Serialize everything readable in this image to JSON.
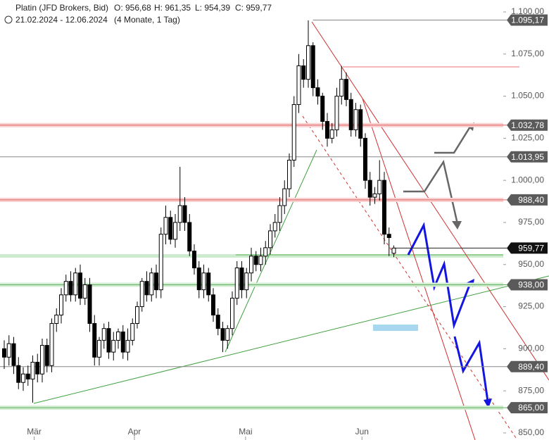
{
  "chart_data": {
    "type": "candlestick",
    "title": "Platin (JFD Brokers, Bid)",
    "ohlc_labels": [
      "O: 956,68",
      "H: 961,35",
      "L: 954,39",
      "C: 959,77"
    ],
    "date_range": "21.02.2024 - 12.06.2024",
    "period": "(4 Monate, 1 Tag)",
    "open": [
      900,
      895,
      903,
      890,
      880,
      885,
      882,
      892,
      885,
      902,
      890,
      915,
      920,
      932,
      940,
      932,
      945,
      930,
      938,
      915,
      895,
      905,
      912,
      898,
      905,
      910,
      898,
      905,
      915,
      925,
      940,
      932,
      945,
      935,
      968,
      978,
      965,
      975,
      985,
      975,
      958,
      948,
      935,
      945,
      932,
      920,
      912,
      905,
      912,
      930,
      948,
      935,
      945,
      955,
      950,
      955,
      960,
      970,
      975,
      985,
      995,
      1012,
      1045,
      1068,
      1060,
      1080,
      1055,
      1050,
      1035,
      1025,
      1030,
      1050,
      1060,
      1048,
      1030,
      1042,
      1025,
      1000,
      990,
      992,
      1000,
      968,
      956.68
    ],
    "high": [
      905,
      908,
      907,
      895,
      889,
      890,
      896,
      897,
      906,
      906,
      918,
      924,
      936,
      944,
      946,
      948,
      950,
      942,
      942,
      920,
      907,
      915,
      916,
      910,
      912,
      914,
      912,
      918,
      928,
      942,
      946,
      948,
      950,
      972,
      985,
      982,
      980,
      1008,
      990,
      980,
      962,
      952,
      950,
      948,
      936,
      924,
      916,
      914,
      934,
      952,
      952,
      948,
      960,
      958,
      960,
      964,
      974,
      980,
      990,
      1000,
      1016,
      1050,
      1075,
      1072,
      1095,
      1082,
      1060,
      1052,
      1040,
      1034,
      1055,
      1068,
      1064,
      1052,
      1046,
      1045,
      1028,
      1005,
      996,
      1012,
      1005,
      972,
      961.35
    ],
    "low": [
      888,
      890,
      885,
      876,
      875,
      878,
      868,
      880,
      880,
      886,
      886,
      910,
      915,
      928,
      928,
      928,
      926,
      926,
      910,
      890,
      890,
      900,
      894,
      893,
      900,
      894,
      893,
      902,
      912,
      922,
      928,
      928,
      930,
      930,
      962,
      962,
      960,
      970,
      970,
      955,
      944,
      930,
      930,
      928,
      916,
      908,
      898,
      900,
      908,
      926,
      930,
      930,
      940,
      946,
      946,
      950,
      956,
      966,
      970,
      980,
      990,
      1008,
      1040,
      1055,
      1055,
      1050,
      1045,
      1030,
      1020,
      1022,
      1026,
      1045,
      1044,
      1026,
      1026,
      1020,
      995,
      985,
      986,
      988,
      962,
      955,
      954.39
    ],
    "close": [
      895,
      903,
      890,
      880,
      885,
      882,
      892,
      885,
      902,
      890,
      915,
      920,
      932,
      940,
      932,
      945,
      930,
      938,
      915,
      895,
      905,
      912,
      898,
      905,
      910,
      898,
      905,
      915,
      925,
      940,
      932,
      945,
      935,
      968,
      978,
      965,
      975,
      985,
      975,
      958,
      948,
      935,
      945,
      932,
      920,
      912,
      905,
      912,
      930,
      948,
      935,
      945,
      955,
      950,
      955,
      960,
      970,
      975,
      985,
      995,
      1012,
      1045,
      1068,
      1060,
      1080,
      1055,
      1050,
      1035,
      1025,
      1030,
      1050,
      1060,
      1048,
      1030,
      1042,
      1025,
      1000,
      990,
      992,
      1000,
      968,
      966,
      959.77
    ],
    "xlim": [
      -0.89,
      114.67
    ],
    "xticks": [
      {
        "value": 6.3,
        "label": "Mär"
      },
      {
        "value": 27.4,
        "label": "Apr"
      },
      {
        "value": 50.8,
        "label": "Mai"
      },
      {
        "value": 75.3,
        "label": "Jun"
      }
    ],
    "ylim": [
      845.8,
      1107.1
    ],
    "yticks": [
      {
        "value": 1100,
        "label": "1.100,00"
      },
      {
        "value": 1075,
        "label": "1.075,00"
      },
      {
        "value": 1050,
        "label": "1.050,00"
      },
      {
        "value": 1025,
        "label": "1.025,00"
      },
      {
        "value": 1000,
        "label": "1.000,00"
      },
      {
        "value": 975,
        "label": "975,00"
      },
      {
        "value": 950,
        "label": "950,00"
      },
      {
        "value": 925,
        "label": "925,00"
      },
      {
        "value": 900,
        "label": "900,00"
      },
      {
        "value": 875,
        "label": "875,00"
      },
      {
        "value": 850,
        "label": "850,00"
      }
    ],
    "levels": [
      {
        "value": 1095.17,
        "label": "1.095,17",
        "color": "#888888",
        "box": "#5a5a5a",
        "from": 65
      },
      {
        "value": 1032.78,
        "label": "1.032,78",
        "color": "#e06060",
        "box": "#5a5a5a",
        "from": -1
      },
      {
        "value": 1013.95,
        "label": "1.013,95",
        "color": "#888888",
        "box": "#5a5a5a",
        "from": -1
      },
      {
        "value": 988.4,
        "label": "988,40",
        "color": "#e06060",
        "box": "#5a5a5a",
        "from": -1
      },
      {
        "value": 959.77,
        "label": "959,77",
        "color": "#222222",
        "box": "#111111",
        "from": 82
      },
      {
        "value": 938,
        "label": "938,00",
        "color": "#60b060",
        "box": "#5a5a5a",
        "from": -1
      },
      {
        "value": 889.4,
        "label": "889,40",
        "color": "#888888",
        "box": "#5a5a5a",
        "from": -1
      },
      {
        "value": 865,
        "label": "865,00",
        "color": "#60b060",
        "box": "#5a5a5a",
        "from": -1
      }
    ]
  }
}
